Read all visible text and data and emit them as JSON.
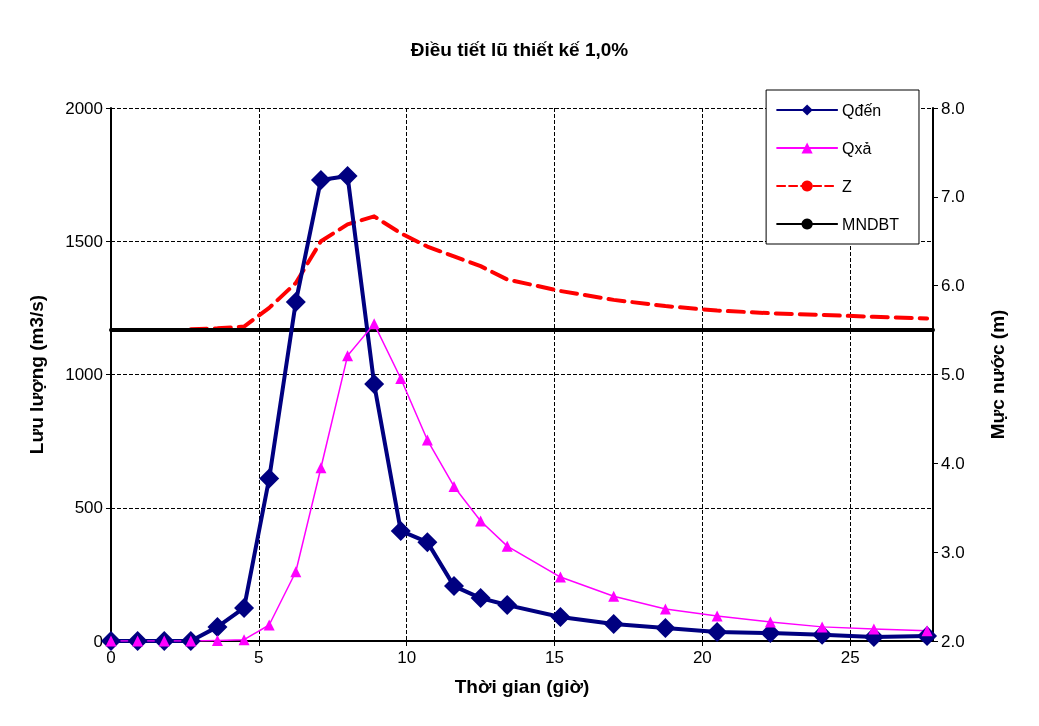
{
  "chart_data": {
    "type": "line",
    "title": "Điều tiết lũ thiết kế 1,0%",
    "xlabel": "Thời gian (giờ)",
    "ylabel": "Lưu lượng (m3/s)",
    "y2label": "Mực nước (m)",
    "x": [
      0,
      0.9,
      1.8,
      2.7,
      3.6,
      4.5,
      5.35,
      6.25,
      7.1,
      8.0,
      8.9,
      9.8,
      10.7,
      11.6,
      12.5,
      13.4,
      15.2,
      17.0,
      18.75,
      20.5,
      22.3,
      24.05,
      25.8,
      27.6
    ],
    "series": [
      {
        "name": "Qđến",
        "color": "#000080",
        "marker": "diamond",
        "line_style": "solid",
        "values": [
          0,
          0,
          0,
          0,
          53,
          124,
          610,
          1272,
          1730,
          1745,
          964,
          413,
          371,
          206,
          161,
          135,
          90,
          64,
          49,
          34,
          30,
          23,
          15,
          19
        ]
      },
      {
        "name": "Qxả",
        "color": "#ff00ff",
        "marker": "triangle",
        "line_style": "solid",
        "values": [
          0,
          0,
          0,
          0,
          2,
          5,
          60,
          260,
          650,
          1070,
          1190,
          985,
          754,
          580,
          450,
          356,
          240,
          168,
          120,
          94,
          71,
          53,
          45,
          38
        ]
      },
      {
        "name": "Z",
        "color": "#ff0000",
        "marker": "none",
        "line_style": "dashed",
        "axis": "y2",
        "values": [
          null,
          null,
          null,
          5.51,
          5.52,
          5.54,
          5.75,
          6.03,
          6.5,
          6.69,
          6.78,
          6.59,
          6.44,
          6.33,
          6.22,
          6.07,
          5.94,
          5.84,
          5.77,
          5.72,
          5.69,
          5.67,
          5.65,
          5.63
        ]
      },
      {
        "name": "MNDBT",
        "color": "#000000",
        "marker": "none",
        "line_style": "solid",
        "axis": "y2",
        "x": [
          0,
          27.8
        ],
        "values": [
          5.5,
          5.5
        ]
      }
    ],
    "xlim": [
      0,
      27.8
    ],
    "xticks": [
      0,
      5,
      10,
      15,
      20,
      25
    ],
    "ylim": [
      0,
      2000
    ],
    "yticks": [
      0,
      500,
      1000,
      1500,
      2000
    ],
    "y2lim": [
      2,
      8
    ],
    "y2ticks": [
      {
        "value": 2,
        "label": "2.0"
      },
      {
        "value": 3,
        "label": "3.0"
      },
      {
        "value": 4,
        "label": "4.0"
      },
      {
        "value": 5,
        "label": "5.0"
      },
      {
        "value": 6,
        "label": "6.0"
      },
      {
        "value": 7,
        "label": "7.0"
      },
      {
        "value": 8,
        "label": "8.0"
      }
    ],
    "grid": true,
    "legend": "top right"
  }
}
